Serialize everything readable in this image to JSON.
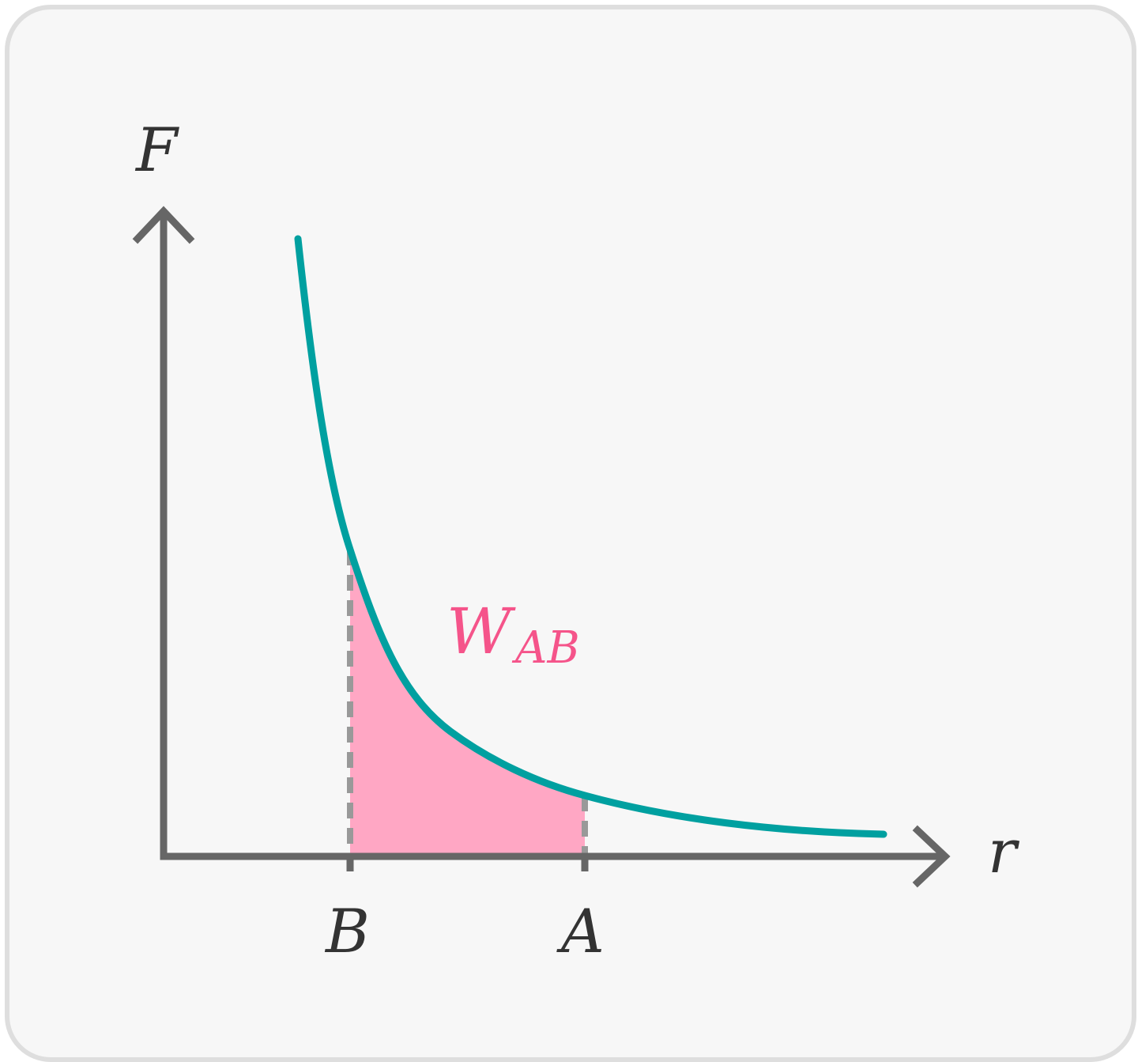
{
  "diagram": {
    "y_axis_label": "F",
    "x_axis_label": "r",
    "marker_b_label": "B",
    "marker_a_label": "A",
    "area_label_main": "W",
    "area_label_sub": "AB"
  },
  "colors": {
    "card_background": "#f7f7f7",
    "card_border": "#dedede",
    "axis": "#666666",
    "curve": "#00a0a0",
    "area_fill": "#ffa7c4",
    "area_label": "#f5548a",
    "dashed_marker": "#999999",
    "text": "#333333"
  }
}
